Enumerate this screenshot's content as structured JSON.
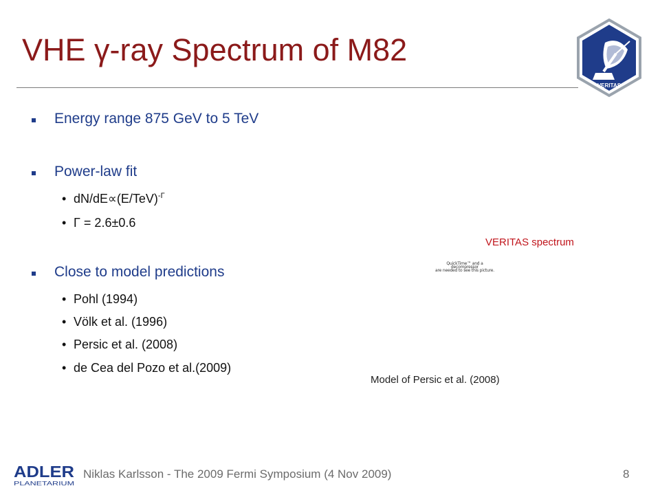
{
  "title": {
    "prefix": "VHE ",
    "gamma": "γ",
    "suffix": "-ray Spectrum of M82"
  },
  "logo": {
    "text": "VERITAS"
  },
  "bullets": {
    "energy_range": "Energy range 875 GeV to 5 TeV",
    "power_law": "Power-law fit",
    "power_law_formula": "dN/dE∝(E/TeV)",
    "power_law_exponent": "-Γ",
    "gamma_value": "Γ = 2.6±0.6",
    "close_to_model": "Close to model predictions",
    "model_refs": [
      "Pohl (1994)",
      "Völk et al. (1996)",
      "Persic et al. (2008)",
      "de Cea del Pozo et al.(2009)"
    ]
  },
  "sub_bullet_symbol": "•",
  "figure": {
    "caption_top": "VERITAS spectrum",
    "placeholder_lines": [
      "QuickTime™ and a",
      "decompressor",
      "are needed to see this picture."
    ],
    "caption_bottom": "Model of Persic et al. (2008)"
  },
  "footer": {
    "adler_top": "ADLER",
    "adler_bottom": "PLANETARIUM",
    "text": "Niklas Karlsson - The 2009 Fermi Symposium (4 Nov 2009)",
    "page_number": "8"
  },
  "colors": {
    "title": "#8b1a1a",
    "bullet_level1": "#1f3c8a",
    "caption_red": "#c0141b",
    "footer_gray": "#6b6b6b",
    "logo_blue": "#1f3c8a"
  }
}
